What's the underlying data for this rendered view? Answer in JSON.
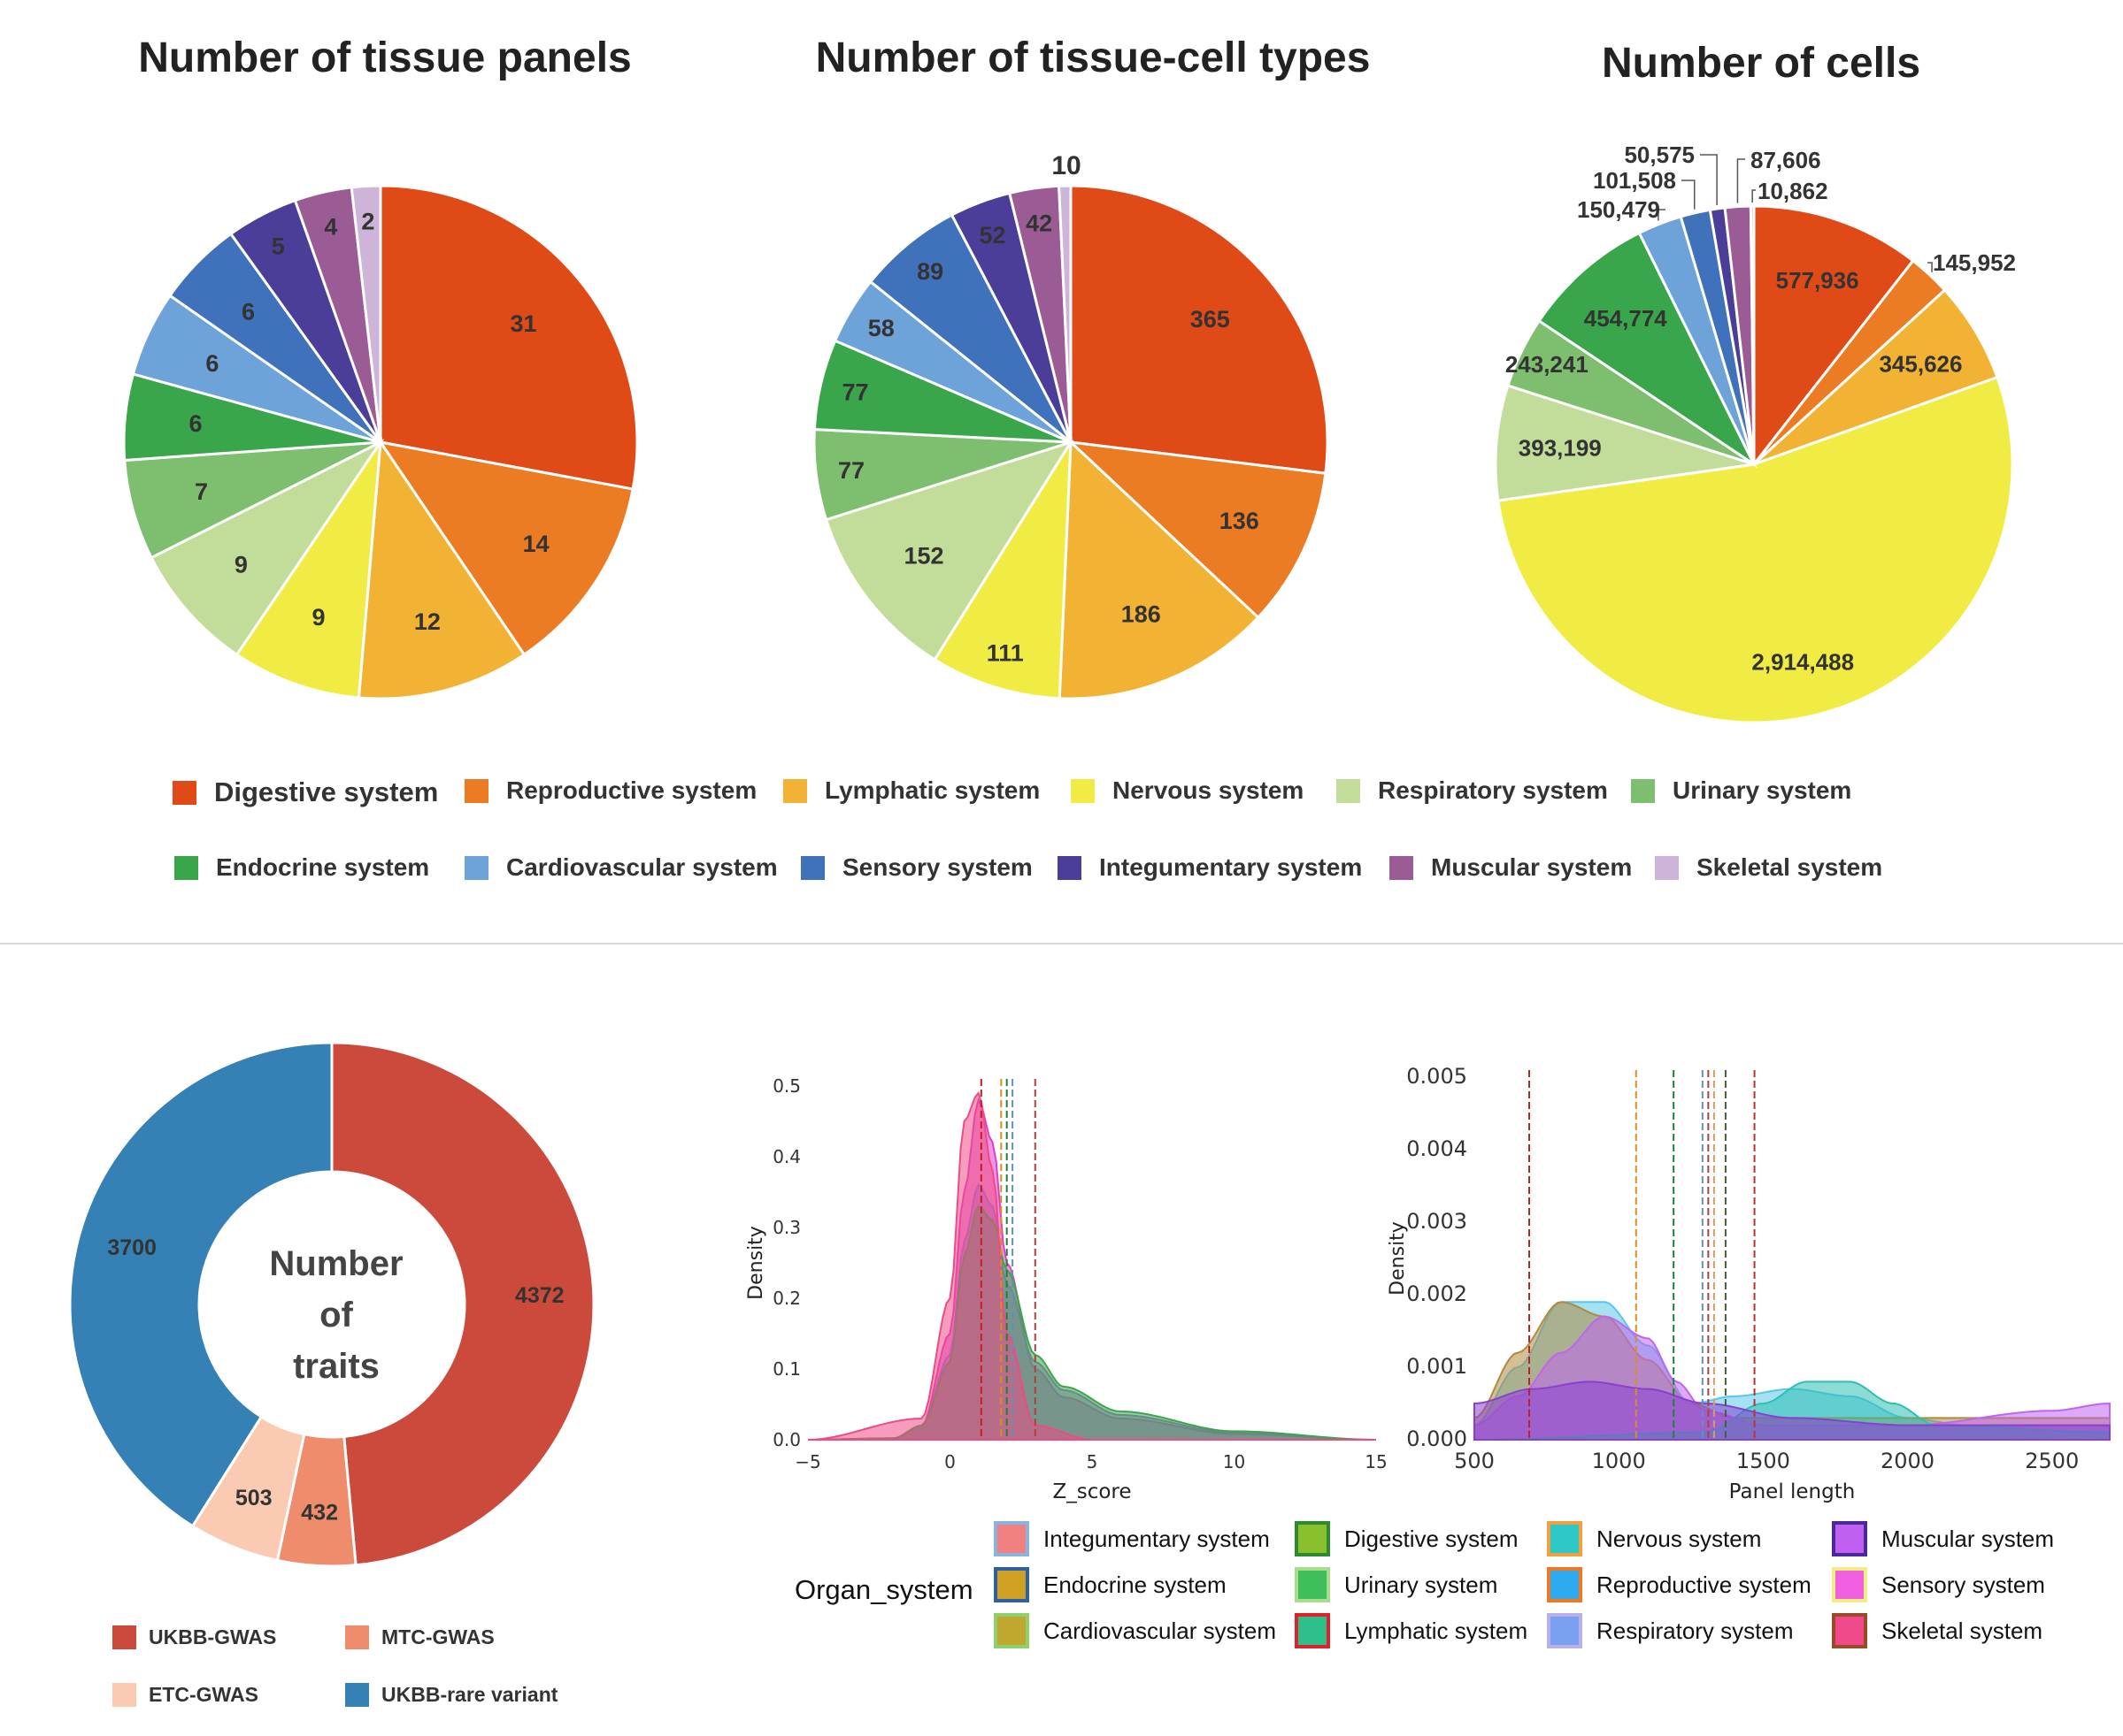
{
  "colors": {
    "systems": [
      "#e04a17",
      "#eb7c23",
      "#f2b233",
      "#f1ec43",
      "#c2dc9a",
      "#7dbf6e",
      "#3aa64b",
      "#6ea3d9",
      "#3f72ba",
      "#4b3e98",
      "#9b5c96",
      "#cfb4d9"
    ],
    "donut": [
      "#cc4a3c",
      "#ef8c6c",
      "#fbcab2",
      "#3580b5"
    ]
  },
  "top_legend": [
    "Digestive system",
    "Reproductive system",
    "Lymphatic system",
    "Nervous system",
    "Respiratory system",
    "Urinary system",
    "Endocrine system",
    "Cardiovascular system",
    "Sensory system",
    "Integumentary system",
    "Muscular system",
    "Skeletal system"
  ],
  "chart_data": [
    {
      "type": "pie",
      "title": "Number of tissue panels",
      "categories": [
        "Digestive system",
        "Reproductive system",
        "Lymphatic system",
        "Nervous system",
        "Respiratory system",
        "Urinary system",
        "Endocrine system",
        "Cardiovascular system",
        "Sensory system",
        "Integumentary system",
        "Muscular system",
        "Skeletal system"
      ],
      "values": [
        31,
        14,
        12,
        9,
        9,
        7,
        6,
        6,
        6,
        5,
        4,
        2
      ],
      "labels": [
        "31",
        "14",
        "12",
        "9",
        "9",
        "7",
        "6",
        "6",
        "6",
        "5",
        "4",
        "2"
      ]
    },
    {
      "type": "pie",
      "title": "Number of tissue-cell types",
      "categories": [
        "Digestive system",
        "Reproductive system",
        "Lymphatic system",
        "Nervous system",
        "Respiratory system",
        "Urinary system",
        "Endocrine system",
        "Cardiovascular system",
        "Sensory system",
        "Integumentary system",
        "Muscular system",
        "Skeletal system"
      ],
      "values": [
        365,
        136,
        186,
        111,
        152,
        77,
        77,
        58,
        89,
        52,
        42,
        10
      ],
      "labels": [
        "365",
        "136",
        "186",
        "111",
        "152",
        "77",
        "77",
        "58",
        "89",
        "52",
        "42",
        "10"
      ]
    },
    {
      "type": "pie",
      "title": "Number of cells",
      "categories": [
        "Digestive system",
        "Reproductive system",
        "Lymphatic system",
        "Nervous system",
        "Respiratory system",
        "Urinary system",
        "Endocrine system",
        "Cardiovascular system",
        "Sensory system",
        "Integumentary system",
        "Muscular system",
        "Skeletal system"
      ],
      "values": [
        577936,
        145952,
        345626,
        2914488,
        393199,
        243241,
        454774,
        150479,
        101508,
        50575,
        87606,
        10862
      ],
      "labels": [
        "577,936",
        "145,952",
        "345,626",
        "2,914,488",
        "393,199",
        "243,241",
        "454,774",
        "150,479",
        "101,508",
        "50,575",
        "87,606",
        "10,862"
      ]
    },
    {
      "type": "pie",
      "title": "Number of traits",
      "center_text": [
        "Number",
        "of",
        "traits"
      ],
      "categories": [
        "UKBB-GWAS",
        "MTC-GWAS",
        "ETC-GWAS",
        "UKBB-rare variant"
      ],
      "values": [
        4372,
        432,
        503,
        3700
      ],
      "labels": [
        "4372",
        "432",
        "503",
        "3700"
      ]
    },
    {
      "type": "area",
      "title": "",
      "xlabel": "Z_score",
      "ylabel": "Density",
      "xlim": [
        -5,
        15
      ],
      "ylim": [
        0,
        0.5
      ],
      "xticks": [
        "−5",
        "0",
        "5",
        "10",
        "15"
      ],
      "yticks": [
        "0.0",
        "0.1",
        "0.2",
        "0.3",
        "0.4",
        "0.5"
      ],
      "series": [
        {
          "name": "Sensory system",
          "color": "#e040c8",
          "x": [
            -5,
            -2,
            -1,
            0,
            0.5,
            1,
            1.5,
            2,
            3,
            4,
            6,
            10,
            15
          ],
          "y": [
            0,
            0.002,
            0.02,
            0.15,
            0.35,
            0.48,
            0.42,
            0.25,
            0.1,
            0.06,
            0.03,
            0.008,
            0
          ]
        },
        {
          "name": "Integumentary system",
          "color": "#9a6fd1",
          "x": [
            -5,
            -2,
            -1,
            0,
            0.5,
            1,
            1.5,
            2,
            3,
            4,
            6,
            10,
            15
          ],
          "y": [
            0,
            0.002,
            0.02,
            0.12,
            0.28,
            0.36,
            0.33,
            0.22,
            0.11,
            0.07,
            0.035,
            0.01,
            0
          ]
        },
        {
          "name": "Digestive system",
          "color": "#3aa64b",
          "x": [
            -5,
            -2,
            -1,
            0,
            0.5,
            1,
            1.5,
            2,
            3,
            4,
            6,
            10,
            15
          ],
          "y": [
            0,
            0.002,
            0.02,
            0.11,
            0.26,
            0.33,
            0.31,
            0.24,
            0.12,
            0.075,
            0.04,
            0.012,
            0
          ]
        },
        {
          "name": "Skeletal system",
          "color": "#f04a86",
          "x": [
            -5,
            -1,
            0,
            0.5,
            1,
            1.5,
            2,
            3,
            5,
            15
          ],
          "y": [
            0,
            0.03,
            0.2,
            0.45,
            0.49,
            0.38,
            0.15,
            0.02,
            0,
            0
          ]
        }
      ],
      "vlines": [
        1.1,
        1.8,
        2.0,
        2.2,
        3.0
      ]
    },
    {
      "type": "area",
      "title": "",
      "xlabel": "Panel length",
      "ylabel": "Density",
      "xlim": [
        500,
        2700
      ],
      "ylim": [
        0,
        0.005
      ],
      "xticks": [
        "500",
        "1000",
        "1500",
        "2000",
        "2500"
      ],
      "yticks": [
        "0.000",
        "0.001",
        "0.002",
        "0.003",
        "0.004",
        "0.005"
      ],
      "series": [
        {
          "name": "Reproductive system",
          "color": "#57c8ea",
          "x": [
            500,
            650,
            800,
            950,
            1100,
            1250,
            1400,
            1600,
            1800,
            2000,
            2200,
            2400,
            2700
          ],
          "y": [
            0.0002,
            0.001,
            0.0019,
            0.0019,
            0.0013,
            0.0005,
            0.0006,
            0.0007,
            0.0006,
            0.0003,
            0.0002,
            0.0002,
            0.0002
          ]
        },
        {
          "name": "Endocrine system",
          "color": "#b08a3f",
          "x": [
            500,
            650,
            800,
            950,
            1100,
            1250,
            1400,
            1700,
            2000,
            2300,
            2700
          ],
          "y": [
            0.0003,
            0.0012,
            0.0019,
            0.0017,
            0.0011,
            0.0005,
            0.0003,
            0.0003,
            0.0003,
            0.0003,
            0.0003
          ]
        },
        {
          "name": "Muscular system",
          "color": "#c065f0",
          "x": [
            500,
            650,
            800,
            950,
            1100,
            1200,
            1300,
            1500,
            2000,
            2500,
            2700
          ],
          "y": [
            0.0002,
            0.0006,
            0.0012,
            0.0017,
            0.0014,
            0.0008,
            0.0004,
            0.0002,
            0.0002,
            0.0004,
            0.0005
          ]
        },
        {
          "name": "Nervous system",
          "color": "#2ebfb3",
          "x": [
            500,
            1300,
            1500,
            1650,
            1800,
            1950,
            2100,
            2700
          ],
          "y": [
            0,
            0.0001,
            0.0005,
            0.0008,
            0.0008,
            0.0005,
            0.0002,
            0.0001
          ]
        },
        {
          "name": "Integumentary system",
          "color": "#8a3fd1",
          "x": [
            500,
            700,
            900,
            1100,
            1300,
            1600,
            2000,
            2700
          ],
          "y": [
            0.0005,
            0.0007,
            0.0008,
            0.0007,
            0.0005,
            0.0003,
            0.0002,
            0.0002
          ]
        }
      ],
      "vlines": [
        690,
        1060,
        1190,
        1290,
        1310,
        1330,
        1370,
        1470
      ]
    }
  ],
  "bottom_left_legend": [
    "UKBB-GWAS",
    "MTC-GWAS",
    "ETC-GWAS",
    "UKBB-rare variant"
  ],
  "organ_legend": {
    "title": "Organ_system",
    "items": [
      {
        "label": "Integumentary system",
        "fill": "#f28080",
        "border": "#8ab4e0"
      },
      {
        "label": "Endocrine system",
        "fill": "#d0a020",
        "border": "#2b5fa8"
      },
      {
        "label": "Cardiovascular system",
        "fill": "#c0a830",
        "border": "#8ed06a"
      },
      {
        "label": "Digestive system",
        "fill": "#8ac02e",
        "border": "#2e8a2e"
      },
      {
        "label": "Urinary system",
        "fill": "#3fbf5a",
        "border": "#a8dc8a"
      },
      {
        "label": "Lymphatic system",
        "fill": "#2ec08a",
        "border": "#e0202a"
      },
      {
        "label": "Nervous system",
        "fill": "#2ec8c8",
        "border": "#f0a040"
      },
      {
        "label": "Reproductive system",
        "fill": "#2eaaf0",
        "border": "#f07820"
      },
      {
        "label": "Respiratory system",
        "fill": "#7aa0f0",
        "border": "#b8b0e8"
      },
      {
        "label": "Muscular system",
        "fill": "#c060f0",
        "border": "#4a2a98"
      },
      {
        "label": "Sensory system",
        "fill": "#f060e0",
        "border": "#f0f080"
      },
      {
        "label": "Skeletal system",
        "fill": "#f04a8a",
        "border": "#9a4a28"
      }
    ]
  }
}
